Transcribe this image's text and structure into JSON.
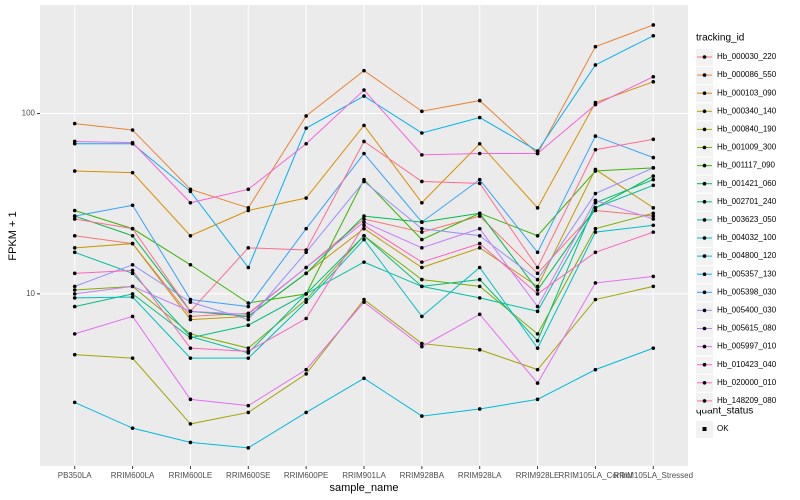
{
  "chart_data": {
    "type": "line",
    "x_label": "sample_name",
    "y_label": "FPKM + 1",
    "log_y": true,
    "grid": true,
    "panel_color": "#EBEBEB",
    "point_color": "#000000",
    "legend_title": "tracking_id",
    "shape_legend": {
      "title": "quant_status",
      "labels": [
        "OK"
      ]
    },
    "categories": [
      "PB350LA",
      "RRIM600LA",
      "RRIM600LE",
      "RRIM600SE",
      "RRIM600PE",
      "RRIM901LA",
      "RRIM928BA",
      "RRIM928LA",
      "RRIM928LE",
      "RRIM105LA_Control",
      "RRIM105LA_Stressed"
    ],
    "ylim": [
      1.11,
      400
    ],
    "yticks": [
      10,
      100
    ],
    "series": [
      {
        "name": "Hb_000030_220",
        "color": "#F8766D",
        "values": [
          21,
          19,
          7.5,
          7.8,
          14,
          26,
          22,
          27,
          13,
          29,
          27
        ]
      },
      {
        "name": "Hb_000086_550",
        "color": "#EA8331",
        "values": [
          88,
          81,
          38,
          30,
          97,
          173,
          103,
          118,
          60,
          235,
          310
        ]
      },
      {
        "name": "Hb_000103_090",
        "color": "#D89000",
        "values": [
          48,
          47,
          21,
          29,
          34,
          86,
          32,
          68,
          30,
          115,
          150
        ]
      },
      {
        "name": "Hb_000340_140",
        "color": "#C09B00",
        "values": [
          18,
          19,
          7.2,
          7.5,
          13,
          23,
          14,
          18,
          11,
          49,
          30
        ]
      },
      {
        "name": "Hb_000840_190",
        "color": "#A3A500",
        "values": [
          4.6,
          4.4,
          1.9,
          2.2,
          3.6,
          9.3,
          5.3,
          4.9,
          3.8,
          9.3,
          11
        ]
      },
      {
        "name": "Hb_001009_300",
        "color": "#7CAE00",
        "values": [
          10.5,
          11,
          6,
          5,
          9.3,
          21,
          12,
          11,
          6,
          23,
          28
        ]
      },
      {
        "name": "Hb_001117_090",
        "color": "#39B600",
        "values": [
          29,
          23,
          14.5,
          8.9,
          10,
          43,
          20,
          28,
          21,
          48,
          50
        ]
      },
      {
        "name": "Hb_001421_060",
        "color": "#00BB4E",
        "values": [
          27,
          21,
          8,
          7.5,
          13,
          27,
          25,
          28,
          10.5,
          30,
          45
        ]
      },
      {
        "name": "Hb_002701_240",
        "color": "#00BF7D",
        "values": [
          8.5,
          10,
          5.7,
          6.7,
          10,
          21,
          11,
          12,
          5.5,
          32,
          43
        ]
      },
      {
        "name": "Hb_003623_050",
        "color": "#00C1A3",
        "values": [
          17,
          13,
          5.8,
          4.7,
          10,
          15,
          11,
          9.5,
          8,
          30,
          40
        ]
      },
      {
        "name": "Hb_004032_100",
        "color": "#00BFC4",
        "values": [
          9.5,
          9.6,
          4.4,
          4.4,
          9,
          20,
          7.5,
          14,
          5,
          22,
          24
        ]
      },
      {
        "name": "Hb_004800_120",
        "color": "#00BAE0",
        "values": [
          2.5,
          1.8,
          1.5,
          1.4,
          2.2,
          3.4,
          2.1,
          2.3,
          2.6,
          3.8,
          5
        ]
      },
      {
        "name": "Hb_005357_130",
        "color": "#00B0F6",
        "values": [
          68,
          68,
          37,
          14,
          83,
          125,
          78,
          95,
          62,
          186,
          270
        ]
      },
      {
        "name": "Hb_005398_030",
        "color": "#35A2FF",
        "values": [
          27,
          31,
          9.3,
          8.5,
          23,
          60,
          25,
          43,
          17,
          75,
          57
        ]
      },
      {
        "name": "Hb_005400_030",
        "color": "#9590FF",
        "values": [
          11,
          14.5,
          9,
          7.2,
          17,
          42,
          23,
          21,
          12,
          36,
          50
        ]
      },
      {
        "name": "Hb_005615_080",
        "color": "#C77CFF",
        "values": [
          10,
          11,
          8,
          7.7,
          14,
          25,
          18,
          23,
          8.5,
          33,
          26
        ]
      },
      {
        "name": "Hb_005997_010",
        "color": "#E76BF3",
        "values": [
          6,
          7.5,
          2.6,
          2.4,
          3.8,
          9,
          5.1,
          7.7,
          3.2,
          11.5,
          12.5
        ]
      },
      {
        "name": "Hb_010423_040",
        "color": "#FA62DB",
        "values": [
          70,
          69,
          32,
          38,
          68,
          135,
          59,
          60,
          60,
          112,
          160
        ]
      },
      {
        "name": "Hb_020000_010",
        "color": "#FF62BC",
        "values": [
          13,
          13.5,
          5,
          4.8,
          7.3,
          24,
          15,
          19,
          10,
          17,
          22
        ]
      },
      {
        "name": "Hb_148209_080",
        "color": "#FF6C91",
        "values": [
          26,
          23,
          8,
          18,
          17.5,
          70,
          42,
          41,
          14,
          63,
          72
        ]
      }
    ]
  }
}
